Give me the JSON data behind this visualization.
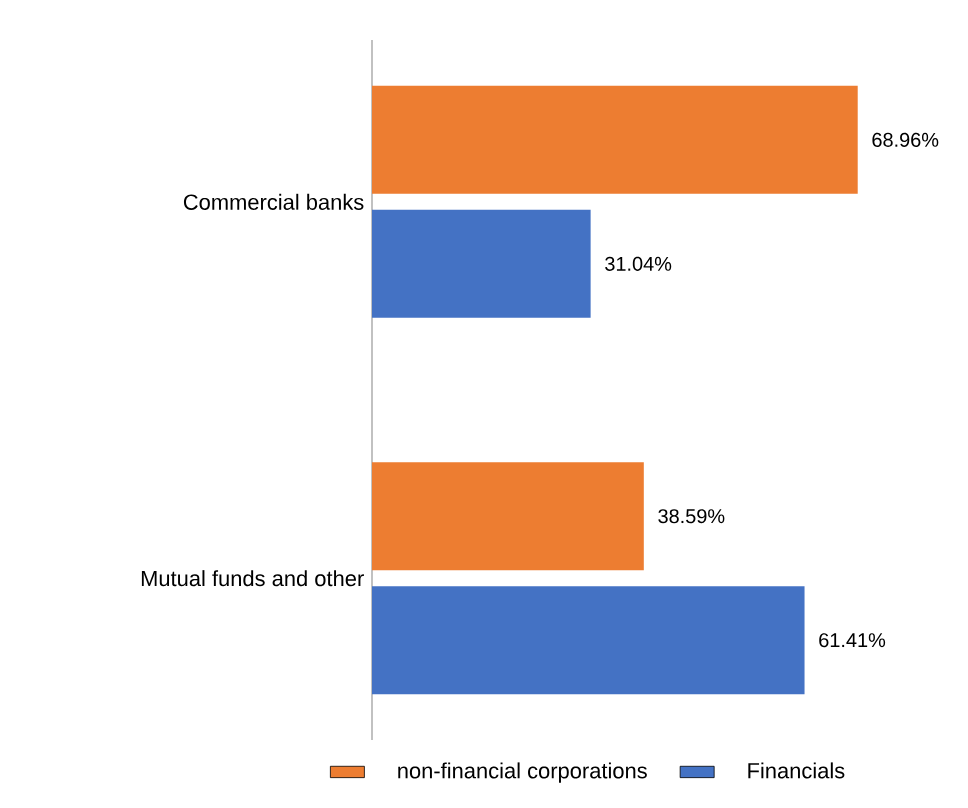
{
  "chart_data": {
    "type": "bar",
    "orientation": "horizontal",
    "categories": [
      "Commercial banks",
      "Mutual funds and other"
    ],
    "series": [
      {
        "name": "non-financial corporations",
        "color": "#ed7d31",
        "values": [
          68.96,
          38.59
        ],
        "value_labels": [
          "68.96%",
          "38.59%"
        ]
      },
      {
        "name": "Financials",
        "color": "#4472c4",
        "values": [
          31.04,
          61.41
        ],
        "value_labels": [
          "31.04%",
          "61.41%"
        ]
      }
    ],
    "legend": "bottom",
    "grid": false
  }
}
